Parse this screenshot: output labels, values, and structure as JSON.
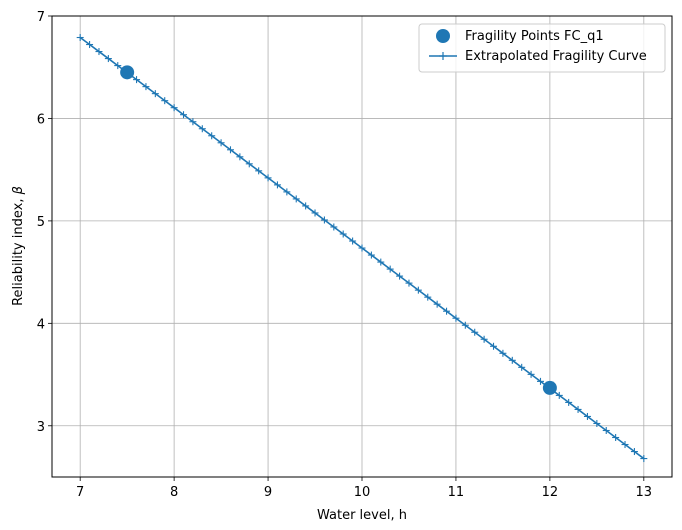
{
  "chart_data": {
    "type": "line",
    "title": "",
    "xlabel": "Water level, h",
    "ylabel": "Reliability index, ",
    "ylabel_symbol": "β",
    "xlim": [
      6.7,
      13.3
    ],
    "ylim": [
      2.5,
      7.0
    ],
    "xticks": [
      7,
      8,
      9,
      10,
      11,
      12,
      13
    ],
    "yticks": [
      3,
      4,
      5,
      6,
      7
    ],
    "grid": true,
    "legend_position": "top-right",
    "series": [
      {
        "name": "Fragility Points FC_q1",
        "style": "points",
        "color": "#1f77b4",
        "marker": "circle",
        "x": [
          7.5,
          12.0
        ],
        "y": [
          6.45,
          3.37
        ]
      },
      {
        "name": "Extrapolated Fragility Curve",
        "style": "line",
        "color": "#1f77b4",
        "marker": "plus",
        "x_start": 7.0,
        "x_end": 13.0,
        "x_step": 0.1,
        "y_start": 6.79,
        "y_end": 2.68
      }
    ]
  }
}
